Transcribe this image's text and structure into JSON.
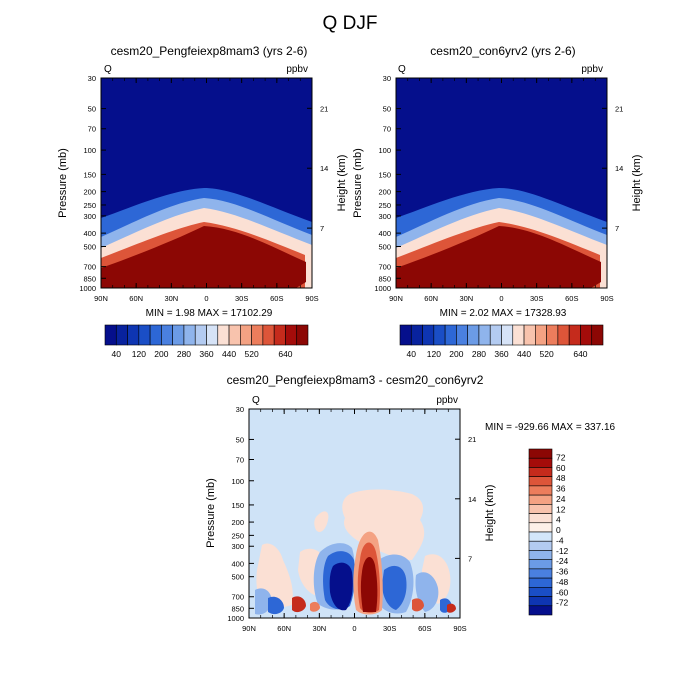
{
  "page_title": "Q DJF",
  "chart_data": [
    {
      "type": "heatmap",
      "title": "cesm20_Pengfeiexp8mam3 (yrs 2-6)",
      "left_label": "Q",
      "right_label": "ppbv",
      "xlabel": "",
      "ylabel": "Pressure (mb)",
      "ylabel_right": "Height (km)",
      "x_ticks": [
        "90N",
        "60N",
        "30N",
        "0",
        "30S",
        "60S",
        "90S"
      ],
      "y_ticks": [
        "30",
        "50",
        "70",
        "100",
        "150",
        "200",
        "250",
        "300",
        "400",
        "500",
        "700",
        "850",
        "1000"
      ],
      "y_ticks_right": [
        "21",
        "14",
        "7"
      ],
      "ylim": [
        1000,
        30
      ],
      "min": 1.98,
      "max": 17102.29,
      "minmax_text": "MIN =   1.98  MAX = 17102.29",
      "colorbar_levels": [
        40,
        80,
        120,
        160,
        200,
        240,
        280,
        320,
        360,
        400,
        440,
        480,
        520,
        560,
        600,
        640
      ],
      "colorbar_labels": [
        "40",
        "120",
        "200",
        "280",
        "360",
        "440",
        "520",
        "640"
      ]
    },
    {
      "type": "heatmap",
      "title": "cesm20_con6yrv2 (yrs 2-6)",
      "left_label": "Q",
      "right_label": "ppbv",
      "xlabel": "",
      "ylabel": "Pressure (mb)",
      "ylabel_right": "Height (km)",
      "x_ticks": [
        "90N",
        "60N",
        "30N",
        "0",
        "30S",
        "60S",
        "90S"
      ],
      "y_ticks": [
        "30",
        "50",
        "70",
        "100",
        "150",
        "200",
        "250",
        "300",
        "400",
        "500",
        "700",
        "850",
        "1000"
      ],
      "y_ticks_right": [
        "21",
        "14",
        "7"
      ],
      "ylim": [
        1000,
        30
      ],
      "min": 2.02,
      "max": 17328.93,
      "minmax_text": "MIN =   2.02  MAX = 17328.93",
      "colorbar_levels": [
        40,
        80,
        120,
        160,
        200,
        240,
        280,
        320,
        360,
        400,
        440,
        480,
        520,
        560,
        600,
        640
      ],
      "colorbar_labels": [
        "40",
        "120",
        "200",
        "280",
        "360",
        "440",
        "520",
        "640"
      ]
    },
    {
      "type": "heatmap",
      "title": "cesm20_Pengfeiexp8mam3 - cesm20_con6yrv2",
      "left_label": "Q",
      "right_label": "ppbv",
      "xlabel": "",
      "ylabel": "Pressure (mb)",
      "ylabel_right": "Height (km)",
      "x_ticks": [
        "90N",
        "60N",
        "30N",
        "0",
        "30S",
        "60S",
        "90S"
      ],
      "y_ticks": [
        "30",
        "50",
        "70",
        "100",
        "150",
        "200",
        "250",
        "300",
        "400",
        "500",
        "700",
        "850",
        "1000"
      ],
      "y_ticks_right": [
        "21",
        "14",
        "7"
      ],
      "ylim": [
        1000,
        30
      ],
      "min": -929.66,
      "max": 337.16,
      "minmax_text": "MIN = -929.66  MAX = 337.16",
      "colorbar_levels": [
        72,
        66,
        60,
        54,
        48,
        42,
        36,
        30,
        24,
        18,
        12,
        8,
        4,
        2,
        0,
        -2,
        -4,
        -8,
        -12,
        -18,
        -24,
        -30,
        -36,
        -42,
        -48,
        -54,
        -60,
        -66,
        -72
      ],
      "colorbar_labels": [
        "72",
        "60",
        "48",
        "36",
        "24",
        "12",
        "4",
        "0",
        "-4",
        "-12",
        "-24",
        "-36",
        "-48",
        "-60",
        "-72"
      ]
    }
  ],
  "colors": {
    "seq_palette": [
      "#050f8c",
      "#08229e",
      "#0e35b2",
      "#1a4ec6",
      "#2d67d6",
      "#4a80e0",
      "#6b9be6",
      "#8fb4ec",
      "#b3cbf1",
      "#d6e3f7",
      "#fbe0d4",
      "#f8c3ad",
      "#f4a283",
      "#ec7d5c",
      "#dd5539",
      "#c52b1c",
      "#a40c0a",
      "#8c0704"
    ],
    "div_palette": [
      "#8c0704",
      "#a40c0a",
      "#c52b1c",
      "#dd5539",
      "#ec7d5c",
      "#f4a283",
      "#f8c3ad",
      "#fbe0d4",
      "#fdf0e8",
      "#d3e6fa",
      "#b3cbf1",
      "#8fb4ec",
      "#6b9be6",
      "#4a80e0",
      "#2d67d6",
      "#1a4ec6",
      "#0e35b2",
      "#050f8c"
    ],
    "background_diff": "#cfe3f7"
  }
}
